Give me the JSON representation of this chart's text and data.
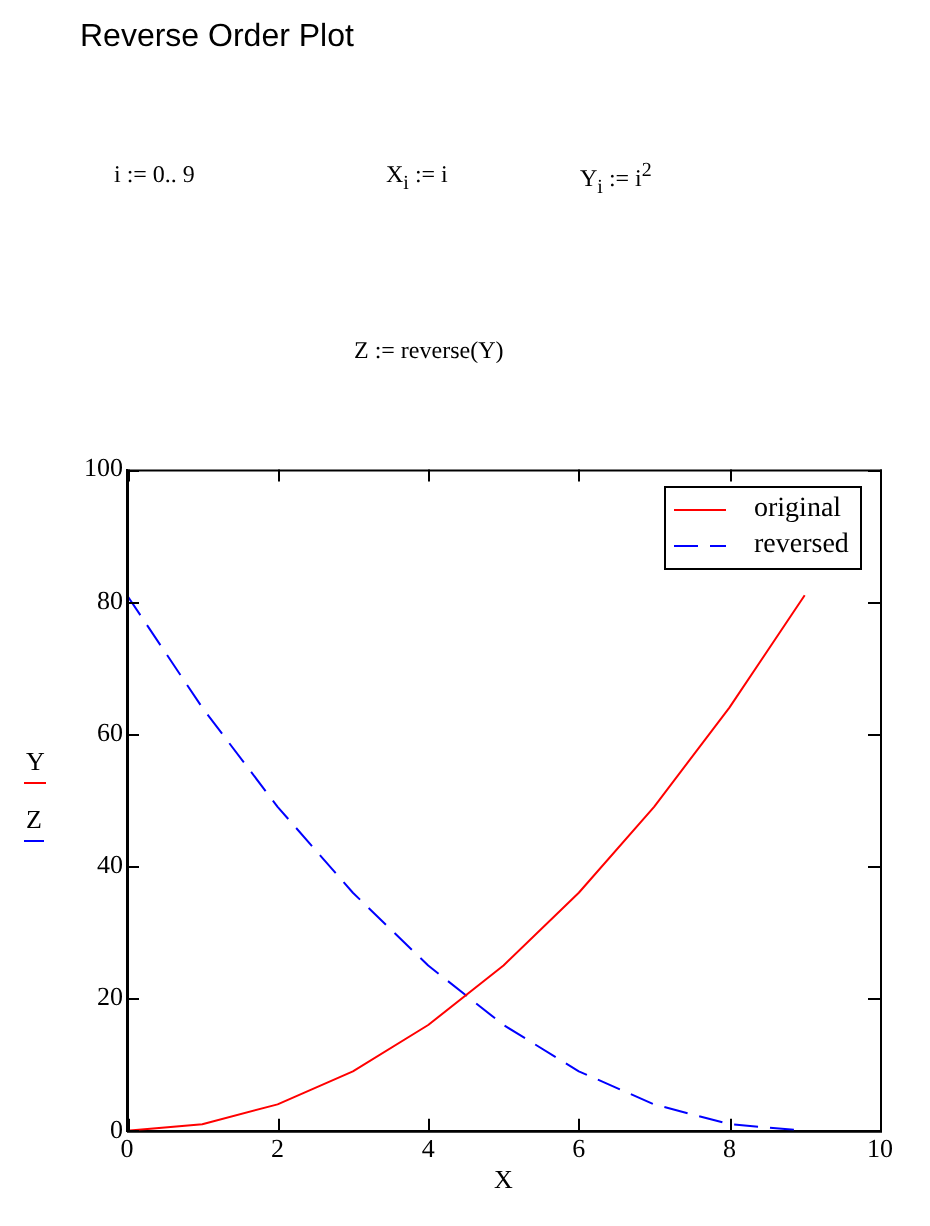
{
  "chart_data": {
    "type": "line",
    "title": "Reverse Order Plot",
    "annotations": [
      "i := 0.. 9",
      "X$_{i}$ := i",
      "Y$_{i}$ := i$^{2}$",
      "Z := reverse(Y)"
    ],
    "xlabel": "X",
    "ylabel": "Y\nZ",
    "x": [
      0,
      1,
      2,
      3,
      4,
      5,
      6,
      7,
      8,
      9
    ],
    "series": [
      {
        "name": "original",
        "color": "#ff0000",
        "line_style": "solid",
        "values": [
          0,
          1,
          4,
          9,
          16,
          25,
          36,
          49,
          64,
          81
        ]
      },
      {
        "name": "reversed",
        "color": "#0000ff",
        "line_style": "dashed",
        "values": [
          81,
          64,
          49,
          36,
          25,
          16,
          9,
          4,
          1,
          0
        ]
      }
    ],
    "xlim": [
      0,
      10
    ],
    "xticks": [
      0,
      2,
      4,
      6,
      8,
      10
    ],
    "ylim": [
      0,
      100
    ],
    "yticks": [
      0,
      20,
      40,
      60,
      80,
      100
    ],
    "grid": false,
    "legend": "top right",
    "marker": "none"
  }
}
